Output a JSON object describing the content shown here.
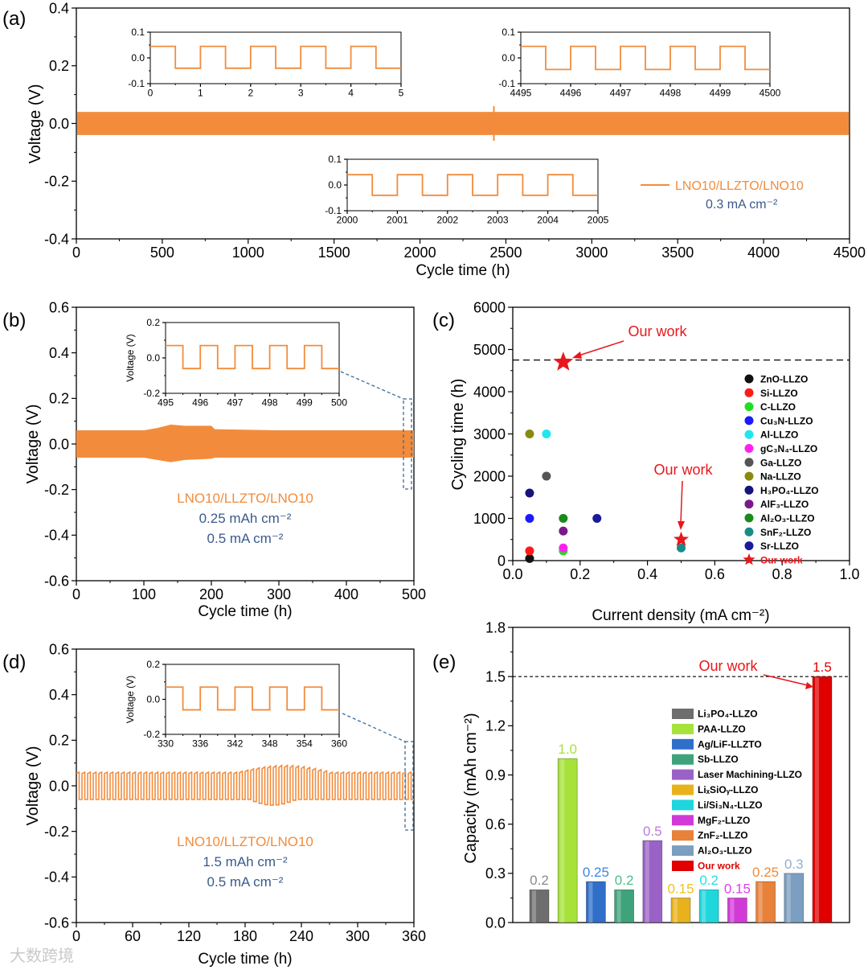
{
  "watermark": "大数跨境",
  "colors": {
    "orange": "#f28c3c",
    "blue_text": "#3a5a8c",
    "red": "#e8171b",
    "axis": "#000000"
  },
  "chart_data": [
    {
      "panel": "(a)",
      "type": "line",
      "xlabel": "Cycle time (h)",
      "ylabel": "Voltage (V)",
      "xlim": [
        0,
        4500
      ],
      "ylim": [
        -0.4,
        0.4
      ],
      "xticks": [
        "0",
        "500",
        "1000",
        "1500",
        "2000",
        "2500",
        "3000",
        "3500",
        "4000",
        "4500"
      ],
      "yticks": [
        "-0.4",
        "-0.2",
        "0.0",
        "0.2",
        "0.4"
      ],
      "series": [
        {
          "name": "LNO10/LLZTO/LNO10",
          "amplitude_v": 0.04,
          "period_h": 1
        }
      ],
      "legend": {
        "label": "LNO10/LLZTO/LNO10",
        "current": "0.3 mA cm⁻²",
        "placement": "lower-right"
      },
      "insets": [
        {
          "xlim": [
            0,
            5
          ],
          "ylim": [
            -0.1,
            0.1
          ],
          "xticks": [
            "0",
            "1",
            "2",
            "3",
            "4",
            "5"
          ],
          "yticks": [
            "-0.1",
            "0.0",
            "0.1"
          ],
          "high": 0.045,
          "low": -0.04,
          "period": 1
        },
        {
          "xlim": [
            4495,
            4500
          ],
          "ylim": [
            -0.1,
            0.1
          ],
          "xticks": [
            "4495",
            "4496",
            "4497",
            "4498",
            "4499",
            "4500"
          ],
          "yticks": [
            "-0.1",
            "0.0",
            "0.1"
          ],
          "high": 0.045,
          "low": -0.045,
          "period": 1
        },
        {
          "xlim": [
            2000,
            2005
          ],
          "ylim": [
            -0.1,
            0.1
          ],
          "xticks": [
            "2000",
            "2001",
            "2002",
            "2003",
            "2004",
            "2005"
          ],
          "yticks": [
            "-0.1",
            "0.0",
            "0.1"
          ],
          "high": 0.04,
          "low": -0.04,
          "period": 1
        }
      ]
    },
    {
      "panel": "(b)",
      "type": "line",
      "xlabel": "Cycle time (h)",
      "ylabel": "Voltage (V)",
      "xlim": [
        0,
        500
      ],
      "ylim": [
        -0.6,
        0.6
      ],
      "xticks": [
        "0",
        "100",
        "200",
        "300",
        "400",
        "500"
      ],
      "yticks": [
        "-0.6",
        "-0.4",
        "-0.2",
        "0.0",
        "0.2",
        "0.4",
        "0.6"
      ],
      "envelope": {
        "x": [
          0,
          100,
          120,
          140,
          160,
          200,
          205,
          300,
          500
        ],
        "upper": [
          0.06,
          0.06,
          0.07,
          0.085,
          0.08,
          0.08,
          0.065,
          0.06,
          0.06
        ],
        "lower": [
          -0.06,
          -0.06,
          -0.07,
          -0.08,
          -0.07,
          -0.065,
          -0.06,
          -0.06,
          -0.06
        ]
      },
      "annotation": [
        "LNO10/LLZTO/LNO10",
        "0.25 mAh cm⁻²",
        "0.5 mA cm⁻²"
      ],
      "inset": {
        "ylabel": "Voltage (V)",
        "xlim": [
          495,
          500
        ],
        "ylim": [
          -0.2,
          0.2
        ],
        "xticks": [
          "495",
          "496",
          "497",
          "498",
          "499",
          "500"
        ],
        "yticks": [
          "-0.2",
          "0.0",
          "0.2"
        ],
        "high": 0.07,
        "low": -0.06,
        "period": 1
      }
    },
    {
      "panel": "(c)",
      "type": "scatter",
      "xlabel": "Current density (mA cm⁻²)",
      "ylabel": "Cycling time (h)",
      "xlim": [
        0,
        1.0
      ],
      "ylim": [
        0,
        6000
      ],
      "xticks": [
        "0.0",
        "0.2",
        "0.4",
        "0.6",
        "0.8",
        "1.0"
      ],
      "yticks": [
        "0",
        "1000",
        "2000",
        "3000",
        "4000",
        "5000",
        "6000"
      ],
      "reference_line": 4750,
      "annotations": [
        {
          "text": "Our work",
          "target": [
            0.15,
            4700
          ]
        },
        {
          "text": "Our work",
          "target": [
            0.5,
            500
          ]
        }
      ],
      "legend_placement": "right",
      "series": [
        {
          "name": "ZnO-LLZO",
          "color": "#111111",
          "points": [
            [
              0.05,
              50
            ]
          ]
        },
        {
          "name": "Si-LLZO",
          "color": "#ff1a1a",
          "points": [
            [
              0.05,
              230
            ]
          ]
        },
        {
          "name": "C-LLZO",
          "color": "#22dd22",
          "points": [
            [
              0.15,
              230
            ]
          ]
        },
        {
          "name": "Cu₃N-LLZO",
          "color": "#1a1aff",
          "points": [
            [
              0.05,
              1000
            ]
          ]
        },
        {
          "name": "Al-LLZO",
          "color": "#22e6ee",
          "points": [
            [
              0.1,
              3000
            ]
          ]
        },
        {
          "name": "gC₃N₄-LLZO",
          "color": "#ff22ee",
          "points": [
            [
              0.15,
              300
            ]
          ]
        },
        {
          "name": "Ga-LLZO",
          "color": "#555555",
          "points": [
            [
              0.1,
              2000
            ]
          ]
        },
        {
          "name": "Na-LLZO",
          "color": "#8a8a12",
          "points": [
            [
              0.05,
              3000
            ]
          ]
        },
        {
          "name": "H₃PO₄-LLZO",
          "color": "#14147a",
          "points": [
            [
              0.05,
              1600
            ]
          ]
        },
        {
          "name": "AlF₃-LLZO",
          "color": "#7a1a8a",
          "points": [
            [
              0.15,
              700
            ]
          ]
        },
        {
          "name": "Al₂O₃-LLZO",
          "color": "#1a8a1a",
          "points": [
            [
              0.15,
              1000
            ]
          ]
        },
        {
          "name": "SnF₂-LLZO",
          "color": "#1a8a8a",
          "points": [
            [
              0.5,
              300
            ]
          ]
        },
        {
          "name": "Sr-LLZO",
          "color": "#1a1a9a",
          "points": [
            [
              0.25,
              1000
            ]
          ]
        },
        {
          "name": "Our work",
          "color": "#e8171b",
          "marker": "star",
          "points": [
            [
              0.15,
              4700
            ],
            [
              0.5,
              500
            ]
          ]
        }
      ]
    },
    {
      "panel": "(d)",
      "type": "line",
      "xlabel": "Cycle time (h)",
      "ylabel": "Voltage (V)",
      "xlim": [
        0,
        360
      ],
      "ylim": [
        -0.6,
        0.6
      ],
      "xticks": [
        "0",
        "60",
        "120",
        "180",
        "240",
        "300",
        "360"
      ],
      "yticks": [
        "-0.6",
        "-0.4",
        "-0.2",
        "0.0",
        "0.2",
        "0.4",
        "0.6"
      ],
      "period_h": 6,
      "annotation": [
        "LNO10/LLZTO/LNO10",
        "1.5 mAh cm⁻²",
        "0.5 mA cm⁻²"
      ],
      "inset": {
        "ylabel": "Voltage (V)",
        "xlim": [
          330,
          360
        ],
        "ylim": [
          -0.2,
          0.2
        ],
        "xticks": [
          "330",
          "336",
          "342",
          "348",
          "354",
          "360"
        ],
        "yticks": [
          "-0.2",
          "0.0",
          "0.2"
        ],
        "high": 0.07,
        "low": -0.06,
        "period": 6
      }
    },
    {
      "panel": "(e)",
      "type": "bar",
      "xlabel": "",
      "ylabel": "Capacity (mAh cm⁻²)",
      "ylim": [
        0,
        1.8
      ],
      "yticks": [
        "0.0",
        "0.3",
        "0.6",
        "0.9",
        "1.2",
        "1.5",
        "1.8"
      ],
      "reference_line": 1.5,
      "annotation": "Our work",
      "legend_placement": "top-center",
      "categories": [
        "Li₃PO₄-LLZO",
        "PAA-LLZO",
        "Ag/LiF-LLZTO",
        "Sb-LLZO",
        "Laser Machining-LLZO",
        "LiₓSiOᵧ-LLZO",
        "Li/Si₃N₄-LLZO",
        "MgF₂-LLZO",
        "ZnF₂-LLZO",
        "Al₂O₃-LLZO",
        "Our work"
      ],
      "values": [
        0.2,
        1.0,
        0.25,
        0.2,
        0.5,
        0.15,
        0.2,
        0.15,
        0.25,
        0.3,
        1.5
      ],
      "value_labels": [
        "0.2",
        "1.0",
        "0.25",
        "0.2",
        "0.5",
        "0.15",
        "0.2",
        "0.15",
        "0.25",
        "0.3",
        "1.5"
      ],
      "colors": [
        "#6e6e6e",
        "#a6e23a",
        "#2f6fc8",
        "#3ea37a",
        "#9a62c6",
        "#e8b21c",
        "#1fd6dc",
        "#d23ad8",
        "#e8813a",
        "#7c9ec0",
        "#e00000"
      ],
      "label_colors": [
        "#8a8a8a",
        "#a6e23a",
        "#3f86e0",
        "#4cbf8a",
        "#b77ee0",
        "#f0c020",
        "#22e0e8",
        "#e040e8",
        "#f08a3a",
        "#8fb0d0",
        "#e00000"
      ]
    }
  ]
}
